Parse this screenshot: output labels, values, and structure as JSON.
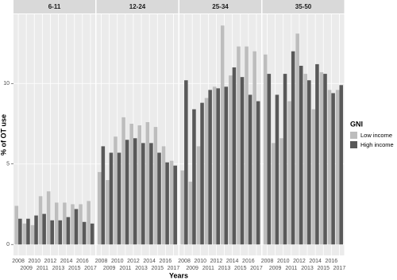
{
  "chart_data": {
    "type": "bar",
    "xlabel": "Years",
    "ylabel": "% of OT use",
    "legend_title": "GNI",
    "categories": [
      "2008",
      "2009",
      "2010",
      "2011",
      "2012",
      "2013",
      "2014",
      "2015",
      "2016",
      "2017"
    ],
    "series": [
      {
        "name": "Low income",
        "color": "#bdbdbd"
      },
      {
        "name": "High income",
        "color": "#595959"
      }
    ],
    "ylim": [
      -0.68,
      14.3
    ],
    "yticks": [
      0,
      5,
      10
    ],
    "grid": true,
    "facets": [
      {
        "title": "6-11",
        "series": [
          {
            "values": [
              2.4,
              1.3,
              1.2,
              3.0,
              3.3,
              2.6,
              2.6,
              2.5,
              2.5,
              2.7
            ]
          },
          {
            "values": [
              1.6,
              1.6,
              1.8,
              1.9,
              1.5,
              1.5,
              1.7,
              2.2,
              1.4,
              1.3
            ]
          }
        ]
      },
      {
        "title": "12-24",
        "series": [
          {
            "values": [
              4.5,
              4.0,
              6.7,
              7.9,
              7.5,
              7.4,
              7.6,
              7.3,
              6.1,
              5.2
            ]
          },
          {
            "values": [
              6.1,
              5.7,
              5.7,
              6.5,
              6.6,
              6.3,
              6.3,
              5.7,
              5.1,
              4.9
            ]
          }
        ]
      },
      {
        "title": "25-34",
        "series": [
          {
            "values": [
              4.6,
              3.9,
              6.1,
              9.1,
              9.8,
              13.6,
              10.5,
              12.3,
              12.3,
              12.0
            ]
          },
          {
            "values": [
              10.2,
              8.4,
              8.8,
              9.6,
              9.7,
              9.8,
              11.0,
              10.4,
              9.3,
              8.9
            ]
          }
        ]
      },
      {
        "title": "35-50",
        "series": [
          {
            "values": [
              11.8,
              6.3,
              6.6,
              8.9,
              13.1,
              10.6,
              8.4,
              10.7,
              9.6,
              9.6
            ]
          },
          {
            "values": [
              10.6,
              9.3,
              10.6,
              12.0,
              11.1,
              10.2,
              11.2,
              10.6,
              9.4,
              9.9
            ]
          }
        ]
      }
    ]
  }
}
